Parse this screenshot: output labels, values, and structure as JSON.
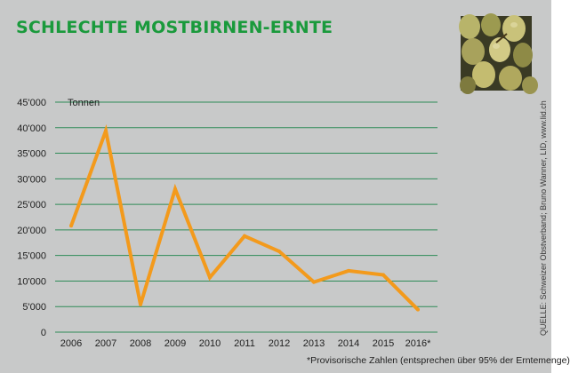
{
  "title": "SCHLECHTE MOSTBIRNEN-ERNTE",
  "image_subject": "pears-photo",
  "source": "QUELLE: Schweizer Obstverband; Bruno Wanner, LID, www.lid.ch",
  "footnote": "*Provisorische Zahlen (entsprechen über 95% der Erntemenge)",
  "colors": {
    "title": "#1a9a3c",
    "line": "#f39a1c",
    "grid": "#2e8b57",
    "background": "#c8c9c9"
  },
  "chart_data": {
    "type": "line",
    "title": "SCHLECHTE MOSTBIRNEN-ERNTE",
    "ylabel": "Tonnen",
    "xlabel": "",
    "categories": [
      "2006",
      "2007",
      "2008",
      "2009",
      "2010",
      "2011",
      "2012",
      "2013",
      "2014",
      "2015",
      "2016*"
    ],
    "values": [
      20800,
      39400,
      5400,
      28000,
      10700,
      18800,
      15800,
      9800,
      12000,
      11200,
      4400
    ],
    "ylim": [
      0,
      45000
    ],
    "yticks": [
      0,
      5000,
      10000,
      15000,
      20000,
      25000,
      30000,
      35000,
      40000,
      45000
    ],
    "ytick_labels": [
      "0",
      "5'000",
      "10'000",
      "15'000",
      "20'000",
      "25'000",
      "30'000",
      "35'000",
      "40'000",
      "45'000"
    ],
    "grid": true,
    "legend": "none"
  }
}
